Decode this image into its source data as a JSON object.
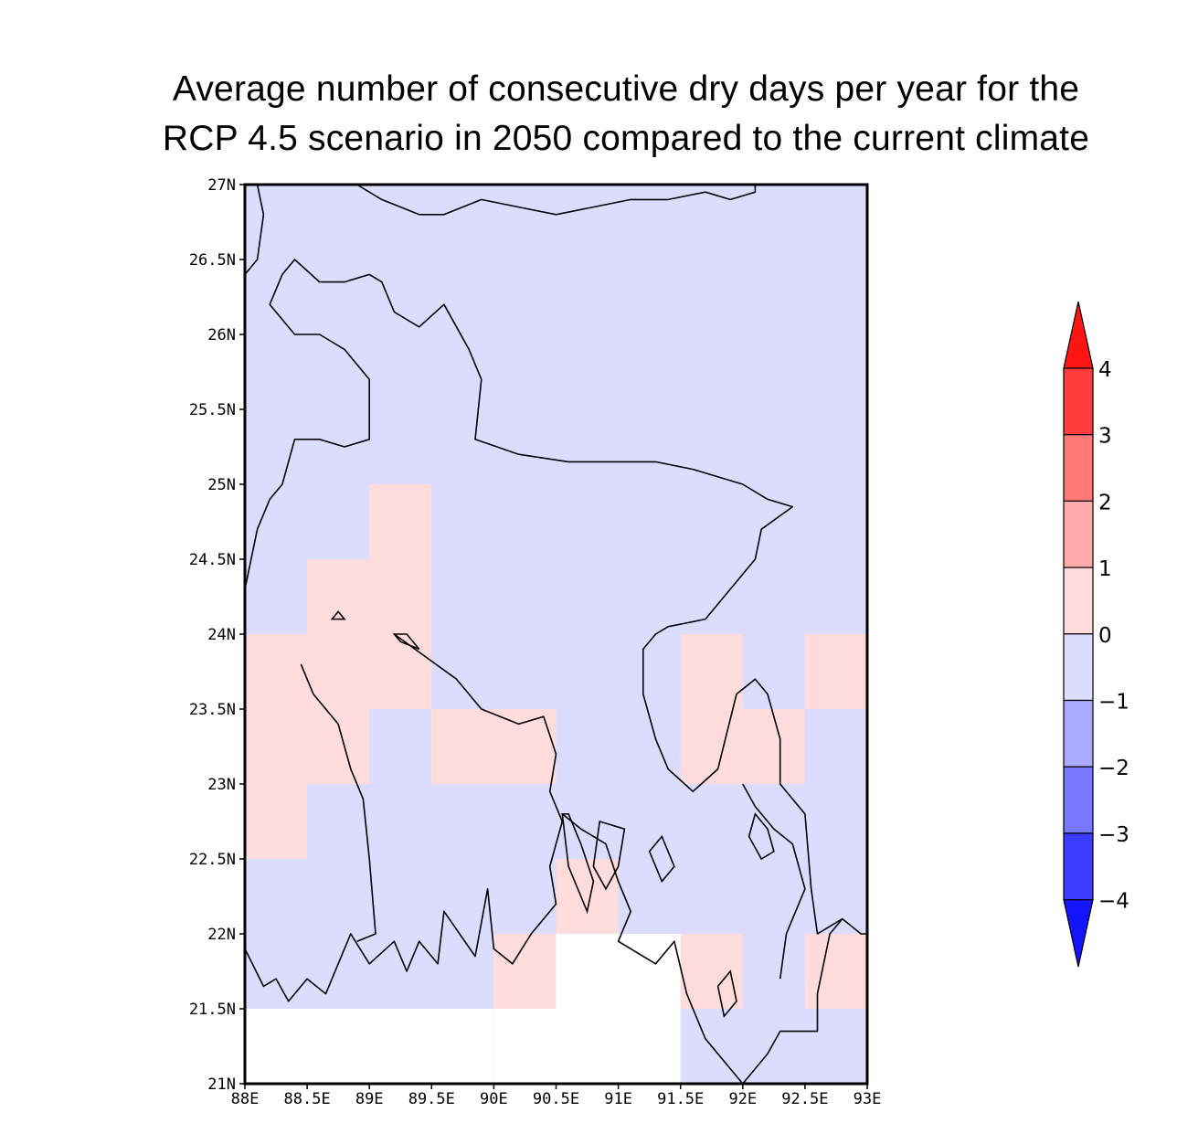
{
  "title": {
    "line1": "Average number of consecutive dry days per year for the",
    "line2": "RCP 4.5 scenario in 2050 compared to the current climate"
  },
  "chart_data": {
    "type": "heatmap",
    "title": "Average number of consecutive dry days per year for the RCP 4.5 scenario in 2050 compared to the current climate",
    "xlabel": "",
    "ylabel": "",
    "xlim": [
      88,
      93
    ],
    "ylim": [
      21,
      27
    ],
    "grid": false,
    "x_ticks": [
      88,
      88.5,
      89,
      89.5,
      90,
      90.5,
      91,
      91.5,
      92,
      92.5,
      93
    ],
    "x_tick_labels": [
      "88E",
      "88.5E",
      "89E",
      "89.5E",
      "90E",
      "90.5E",
      "91E",
      "91.5E",
      "92E",
      "92.5E",
      "93E"
    ],
    "y_ticks": [
      21,
      21.5,
      22,
      22.5,
      23,
      23.5,
      24,
      24.5,
      25,
      25.5,
      26,
      26.5,
      27
    ],
    "y_tick_labels": [
      "21N",
      "21.5N",
      "22N",
      "22.5N",
      "23N",
      "23.5N",
      "24N",
      "24.5N",
      "25N",
      "25.5N",
      "26N",
      "26.5N",
      "27N"
    ],
    "background_class": "-1 to 0",
    "colorbar": {
      "placement": "right",
      "levels": [
        4,
        3,
        2,
        1,
        0,
        -1,
        -2,
        -3,
        -4
      ],
      "level_labels": [
        "4",
        "3",
        "2",
        "1",
        "0",
        "−1",
        "−2",
        "−3",
        "−4"
      ],
      "colors": [
        "#ff1414",
        "#ff3c3c",
        "#ff7878",
        "#ffaaaa",
        "#ffdcdc",
        "#dcdcff",
        "#aaaaff",
        "#7878ff",
        "#3c3cff",
        "#1414ff"
      ],
      "over_color": "#ff1414",
      "under_color": "#1414ff"
    },
    "cells": [
      {
        "lon": [
          89.0,
          89.5
        ],
        "lat": [
          24.5,
          25.0
        ],
        "class": "0 to 1"
      },
      {
        "lon": [
          88.5,
          89.5
        ],
        "lat": [
          24.0,
          24.5
        ],
        "class": "0 to 1"
      },
      {
        "lon": [
          88.0,
          89.5
        ],
        "lat": [
          23.5,
          24.0
        ],
        "class": "0 to 1"
      },
      {
        "lon": [
          88.0,
          89.0
        ],
        "lat": [
          23.0,
          23.5
        ],
        "class": "0 to 1"
      },
      {
        "lon": [
          89.5,
          90.5
        ],
        "lat": [
          23.0,
          23.5
        ],
        "class": "0 to 1"
      },
      {
        "lon": [
          88.0,
          88.5
        ],
        "lat": [
          22.5,
          23.0
        ],
        "class": "0 to 1"
      },
      {
        "lon": [
          91.5,
          92.0
        ],
        "lat": [
          23.5,
          24.0
        ],
        "class": "0 to 1"
      },
      {
        "lon": [
          92.5,
          93.0
        ],
        "lat": [
          23.5,
          24.0
        ],
        "class": "0 to 1"
      },
      {
        "lon": [
          91.5,
          92.5
        ],
        "lat": [
          23.0,
          23.5
        ],
        "class": "0 to 1"
      },
      {
        "lon": [
          90.5,
          91.0
        ],
        "lat": [
          22.0,
          22.5
        ],
        "class": "0 to 1"
      },
      {
        "lon": [
          90.0,
          90.5
        ],
        "lat": [
          21.5,
          22.0
        ],
        "class": "0 to 1"
      },
      {
        "lon": [
          91.5,
          92.0
        ],
        "lat": [
          21.5,
          22.0
        ],
        "class": "0 to 1"
      },
      {
        "lon": [
          92.5,
          93.0
        ],
        "lat": [
          21.5,
          22.0
        ],
        "class": "0 to 1"
      },
      {
        "lon": [
          88.0,
          90.0
        ],
        "lat": [
          21.0,
          21.5
        ],
        "class": "missing"
      },
      {
        "lon": [
          90.0,
          91.5
        ],
        "lat": [
          21.0,
          22.0
        ],
        "class": "missing"
      },
      {
        "lon": [
          90.0,
          90.5
        ],
        "lat": [
          21.5,
          22.0
        ],
        "class": "0 to 1"
      }
    ],
    "coastline": [
      [
        [
          88.0,
          26.4
        ],
        [
          88.1,
          26.5
        ],
        [
          88.15,
          26.8
        ],
        [
          88.1,
          27.0
        ]
      ],
      [
        [
          88.9,
          27.0
        ],
        [
          89.1,
          26.9
        ],
        [
          89.4,
          26.8
        ],
        [
          89.6,
          26.8
        ],
        [
          89.9,
          26.9
        ],
        [
          90.2,
          26.85
        ],
        [
          90.5,
          26.8
        ],
        [
          90.8,
          26.85
        ],
        [
          91.1,
          26.9
        ],
        [
          91.4,
          26.9
        ],
        [
          91.7,
          26.95
        ],
        [
          91.9,
          26.9
        ],
        [
          92.1,
          26.95
        ],
        [
          92.1,
          27.0
        ]
      ],
      [
        [
          88.0,
          24.3
        ],
        [
          88.1,
          24.7
        ],
        [
          88.2,
          24.9
        ],
        [
          88.3,
          25.0
        ],
        [
          88.4,
          25.3
        ],
        [
          88.6,
          25.3
        ],
        [
          88.8,
          25.25
        ],
        [
          89.0,
          25.3
        ],
        [
          89.0,
          25.7
        ],
        [
          88.8,
          25.9
        ],
        [
          88.6,
          26.0
        ],
        [
          88.4,
          26.0
        ],
        [
          88.2,
          26.2
        ],
        [
          88.3,
          26.4
        ],
        [
          88.4,
          26.5
        ],
        [
          88.6,
          26.35
        ],
        [
          88.8,
          26.35
        ],
        [
          89.0,
          26.4
        ],
        [
          89.1,
          26.35
        ],
        [
          89.2,
          26.15
        ],
        [
          89.4,
          26.05
        ],
        [
          89.6,
          26.2
        ],
        [
          89.8,
          25.9
        ],
        [
          89.9,
          25.7
        ],
        [
          89.85,
          25.3
        ],
        [
          90.2,
          25.2
        ],
        [
          90.6,
          25.15
        ],
        [
          91.0,
          25.15
        ],
        [
          91.3,
          25.15
        ],
        [
          91.6,
          25.1
        ],
        [
          92.0,
          25.0
        ],
        [
          92.2,
          24.9
        ],
        [
          92.4,
          24.85
        ],
        [
          92.15,
          24.7
        ],
        [
          92.1,
          24.5
        ],
        [
          91.9,
          24.3
        ],
        [
          91.7,
          24.1
        ],
        [
          91.4,
          24.05
        ],
        [
          91.3,
          24.0
        ],
        [
          91.2,
          23.9
        ],
        [
          91.2,
          23.6
        ],
        [
          91.3,
          23.3
        ],
        [
          91.4,
          23.1
        ],
        [
          91.6,
          22.95
        ],
        [
          91.8,
          23.1
        ],
        [
          91.95,
          23.6
        ],
        [
          92.1,
          23.7
        ],
        [
          92.2,
          23.6
        ],
        [
          92.3,
          23.3
        ],
        [
          92.3,
          23.0
        ],
        [
          92.5,
          22.8
        ],
        [
          92.55,
          22.3
        ],
        [
          92.6,
          22.0
        ],
        [
          92.8,
          22.1
        ],
        [
          92.95,
          22.0
        ],
        [
          93.0,
          22.0
        ]
      ],
      [
        [
          89.2,
          24.0
        ],
        [
          89.45,
          23.85
        ],
        [
          89.7,
          23.7
        ],
        [
          89.9,
          23.5
        ],
        [
          90.2,
          23.4
        ],
        [
          90.4,
          23.45
        ],
        [
          90.5,
          23.2
        ],
        [
          90.45,
          22.95
        ],
        [
          90.55,
          22.75
        ],
        [
          90.45,
          22.45
        ],
        [
          90.5,
          22.2
        ],
        [
          90.3,
          22.0
        ],
        [
          90.15,
          21.8
        ],
        [
          90.0,
          21.9
        ],
        [
          89.95,
          22.3
        ],
        [
          89.85,
          21.85
        ],
        [
          89.6,
          22.15
        ],
        [
          89.55,
          21.8
        ],
        [
          89.4,
          21.95
        ],
        [
          89.3,
          21.75
        ],
        [
          89.2,
          21.95
        ],
        [
          89.0,
          21.8
        ],
        [
          88.85,
          22.0
        ],
        [
          88.75,
          21.8
        ],
        [
          88.65,
          21.6
        ],
        [
          88.5,
          21.7
        ],
        [
          88.35,
          21.55
        ],
        [
          88.25,
          21.7
        ],
        [
          88.15,
          21.65
        ],
        [
          88.0,
          21.9
        ],
        [
          88.0,
          22.2
        ]
      ],
      [
        [
          88.45,
          23.8
        ],
        [
          88.55,
          23.6
        ],
        [
          88.75,
          23.4
        ],
        [
          88.85,
          23.1
        ],
        [
          88.95,
          22.9
        ],
        [
          89.0,
          22.5
        ],
        [
          89.05,
          22.0
        ],
        [
          88.9,
          21.95
        ]
      ],
      [
        [
          90.55,
          22.8
        ],
        [
          90.7,
          22.7
        ],
        [
          90.9,
          22.6
        ],
        [
          91.0,
          22.35
        ],
        [
          91.1,
          22.15
        ],
        [
          91.0,
          21.95
        ],
        [
          91.3,
          21.8
        ],
        [
          91.45,
          21.95
        ],
        [
          91.55,
          21.6
        ],
        [
          91.7,
          21.3
        ],
        [
          91.9,
          21.1
        ],
        [
          92.0,
          21.0
        ]
      ],
      [
        [
          92.3,
          21.7
        ],
        [
          92.35,
          22.0
        ],
        [
          92.5,
          22.3
        ],
        [
          92.4,
          22.6
        ],
        [
          92.25,
          22.7
        ],
        [
          92.1,
          22.85
        ],
        [
          92.0,
          23.0
        ]
      ],
      [
        [
          92.0,
          21.0
        ],
        [
          92.2,
          21.2
        ],
        [
          92.3,
          21.35
        ],
        [
          92.6,
          21.35
        ],
        [
          92.6,
          21.6
        ],
        [
          92.7,
          22.0
        ],
        [
          92.8,
          22.1
        ]
      ]
    ],
    "islands": [
      [
        [
          90.85,
          22.75
        ],
        [
          91.05,
          22.7
        ],
        [
          91.0,
          22.45
        ],
        [
          90.9,
          22.3
        ],
        [
          90.8,
          22.45
        ],
        [
          90.85,
          22.75
        ]
      ],
      [
        [
          91.35,
          22.65
        ],
        [
          91.45,
          22.45
        ],
        [
          91.35,
          22.35
        ],
        [
          91.25,
          22.55
        ],
        [
          91.35,
          22.65
        ]
      ],
      [
        [
          90.6,
          22.8
        ],
        [
          90.7,
          22.6
        ],
        [
          90.8,
          22.35
        ],
        [
          90.75,
          22.15
        ],
        [
          90.6,
          22.45
        ],
        [
          90.55,
          22.8
        ]
      ],
      [
        [
          91.9,
          21.75
        ],
        [
          91.95,
          21.55
        ],
        [
          91.85,
          21.45
        ],
        [
          91.8,
          21.65
        ],
        [
          91.9,
          21.75
        ]
      ],
      [
        [
          89.2,
          24.0
        ],
        [
          89.3,
          24.0
        ],
        [
          89.4,
          23.9
        ],
        [
          89.25,
          23.95
        ],
        [
          89.2,
          24.0
        ]
      ],
      [
        [
          88.7,
          24.1
        ],
        [
          88.75,
          24.15
        ],
        [
          88.8,
          24.1
        ],
        [
          88.7,
          24.1
        ]
      ],
      [
        [
          92.1,
          22.8
        ],
        [
          92.2,
          22.7
        ],
        [
          92.25,
          22.55
        ],
        [
          92.15,
          22.5
        ],
        [
          92.05,
          22.65
        ],
        [
          92.1,
          22.8
        ]
      ]
    ]
  }
}
